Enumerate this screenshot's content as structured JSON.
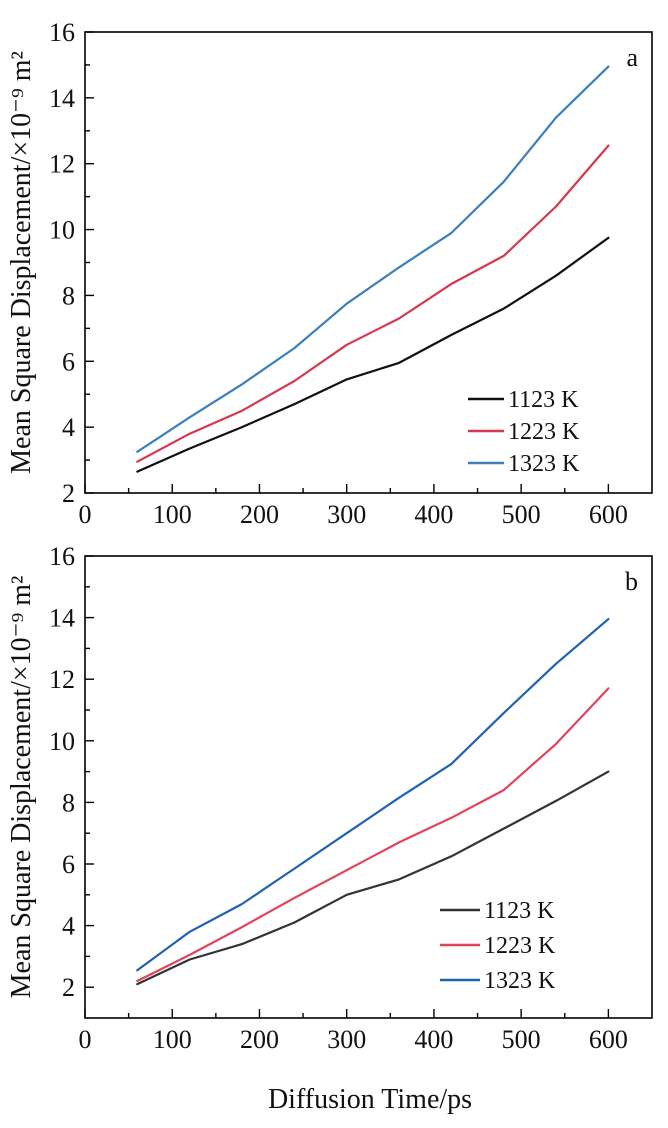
{
  "x_axis_label": "Diffusion Time/ps",
  "chart_data": [
    {
      "type": "line",
      "panel_label": "a",
      "ylabel": "Mean Square Displacement/×10⁻⁹ m²",
      "xlim": [
        0,
        650
      ],
      "ylim": [
        2,
        16
      ],
      "x_ticks": [
        0,
        100,
        200,
        300,
        400,
        500,
        600
      ],
      "y_ticks": [
        2,
        4,
        6,
        8,
        10,
        12,
        14,
        16
      ],
      "x": [
        60,
        120,
        180,
        240,
        300,
        360,
        420,
        480,
        540,
        600
      ],
      "series": [
        {
          "name": "1123 K",
          "color": "#111111",
          "values": [
            2.65,
            3.35,
            4.0,
            4.7,
            5.45,
            5.95,
            6.8,
            7.6,
            8.6,
            9.75
          ]
        },
        {
          "name": "1223 K",
          "color": "#d7364f",
          "values": [
            2.95,
            3.8,
            4.5,
            5.4,
            6.5,
            7.3,
            8.35,
            9.2,
            10.7,
            12.55
          ]
        },
        {
          "name": "1323 K",
          "color": "#3a7fc0",
          "values": [
            3.25,
            4.3,
            5.3,
            6.4,
            7.75,
            8.85,
            9.9,
            11.45,
            13.4,
            14.95
          ]
        }
      ],
      "legend_position": "bottom-right",
      "grid": false
    },
    {
      "type": "line",
      "panel_label": "b",
      "ylabel": "Mean Square Displacement/×10⁻⁹ m²",
      "xlim": [
        0,
        650
      ],
      "ylim": [
        1,
        16
      ],
      "x_ticks": [
        0,
        100,
        200,
        300,
        400,
        500,
        600
      ],
      "y_ticks": [
        2,
        4,
        6,
        8,
        10,
        12,
        14,
        16
      ],
      "x": [
        60,
        120,
        180,
        240,
        300,
        360,
        420,
        480,
        540,
        600
      ],
      "series": [
        {
          "name": "1123 K",
          "color": "#333333",
          "values": [
            2.1,
            2.9,
            3.4,
            4.1,
            5.0,
            5.5,
            6.25,
            7.15,
            8.05,
            9.0
          ]
        },
        {
          "name": "1223 K",
          "color": "#e0445a",
          "values": [
            2.2,
            3.05,
            3.95,
            4.9,
            5.8,
            6.7,
            7.5,
            8.4,
            9.9,
            11.7
          ]
        },
        {
          "name": "1323 K",
          "color": "#1f62b4",
          "values": [
            2.55,
            3.8,
            4.7,
            5.85,
            7.0,
            8.15,
            9.25,
            10.9,
            12.5,
            13.95
          ]
        }
      ],
      "legend_position": "bottom-right",
      "grid": false
    }
  ]
}
